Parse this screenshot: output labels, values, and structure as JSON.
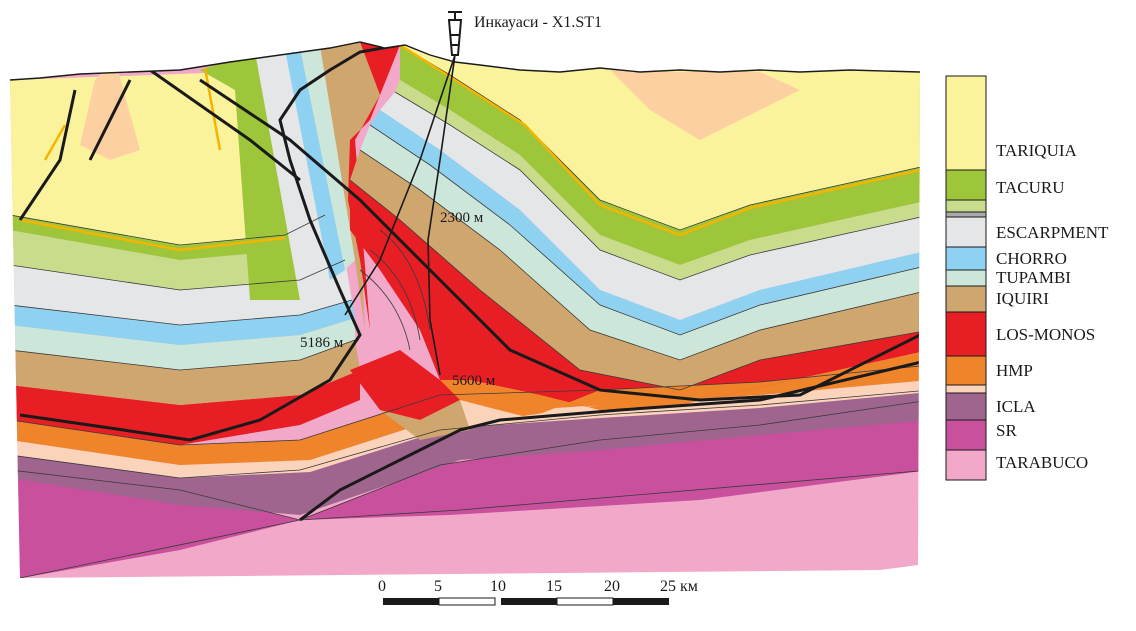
{
  "well": {
    "name": "Инкауаси - X1.ST1",
    "depths": [
      {
        "label": "2300 м"
      },
      {
        "label": "5186 м"
      },
      {
        "label": "5600 м"
      }
    ]
  },
  "legend": [
    {
      "name": "TARIQUIA",
      "color": "#faf39b"
    },
    {
      "name": "TACURU",
      "color": "#9dc63b"
    },
    {
      "name": "",
      "color": "#c8dc8c"
    },
    {
      "name": "",
      "color": "#a9aaab"
    },
    {
      "name": "ESCARPMENT",
      "color": "#e5e6e8"
    },
    {
      "name": "CHORRO",
      "color": "#8fd1f1"
    },
    {
      "name": "TUPAMBI",
      "color": "#cde6da"
    },
    {
      "name": "IQUIRI",
      "color": "#cfa66d"
    },
    {
      "name": "LOS-MONOS",
      "color": "#e81e25"
    },
    {
      "name": "HMP",
      "color": "#f0842b"
    },
    {
      "name": "",
      "color": "#fbd3bb"
    },
    {
      "name": "ICLA",
      "color": "#a0658f"
    },
    {
      "name": "SR",
      "color": "#c8509d"
    },
    {
      "name": "TARABUCO",
      "color": "#f2a8c8"
    }
  ],
  "scale": {
    "ticks": [
      "0",
      "5",
      "10",
      "15",
      "20",
      "25 км"
    ]
  }
}
